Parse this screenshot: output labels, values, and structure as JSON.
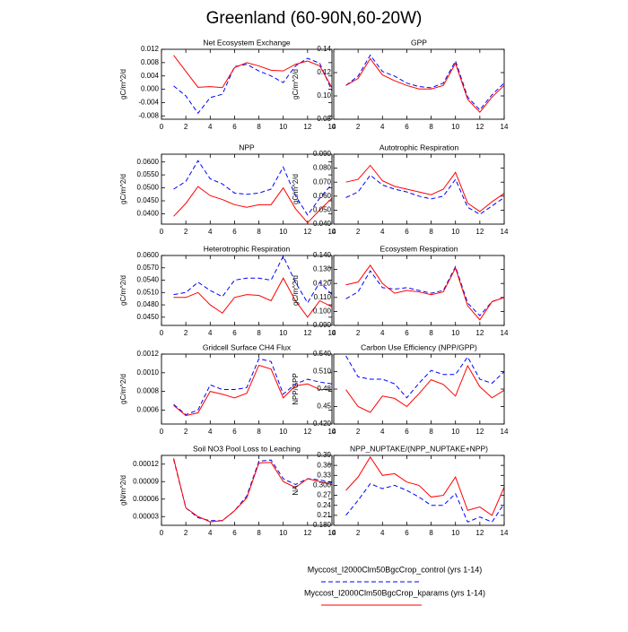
{
  "title": "Greenland (60-90N,60-20W)",
  "legend": [
    {
      "name": "Myccost_I2000Clm50BgcCrop_control (yrs 1-14)",
      "color": "#0000ff",
      "dashed": true
    },
    {
      "name": "Myccost_I2000Clm50BgcCrop_kparams (yrs 1-14)",
      "color": "#ff0000",
      "dashed": false
    }
  ],
  "chart_data": [
    {
      "type": "line",
      "title": "Net Ecosystem Exchange",
      "ylabel": "gC/m^2/d",
      "x": [
        1,
        2,
        3,
        4,
        5,
        6,
        7,
        8,
        9,
        10,
        11,
        12,
        13,
        14
      ],
      "xlim": [
        0,
        14
      ],
      "xticks": [
        0,
        2,
        4,
        6,
        8,
        10,
        12,
        14
      ],
      "ylim": [
        -0.009,
        0.012
      ],
      "yticks": [
        -0.008,
        -0.004,
        {
          "value": 0,
          "label": "0.000"
        },
        0.004,
        0.008,
        0.012
      ],
      "series": [
        {
          "values": [
            0.001,
            -0.002,
            -0.0072,
            -0.0025,
            -0.0015,
            0.0068,
            0.0075,
            0.0055,
            0.004,
            0.002,
            0.007,
            0.0093,
            0.0078,
            -0.0005
          ]
        },
        {
          "values": [
            0.0102,
            0.0054,
            0.0006,
            0.0008,
            0.0005,
            0.0065,
            0.008,
            0.007,
            0.0057,
            0.0055,
            0.0075,
            0.0085,
            0.007,
            0.0005
          ]
        }
      ]
    },
    {
      "type": "line",
      "title": "GPP",
      "ylabel": "gC/m^2/d",
      "x": [
        1,
        2,
        3,
        4,
        5,
        6,
        7,
        8,
        9,
        10,
        11,
        12,
        13,
        14
      ],
      "xlim": [
        0,
        14
      ],
      "xticks": [
        0,
        2,
        4,
        6,
        8,
        10,
        12,
        14
      ],
      "ylim": [
        0.08,
        0.14
      ],
      "yticks": [
        0.08,
        {
          "value": 0.1,
          "label": "0.10"
        },
        0.12,
        0.14
      ],
      "series": [
        {
          "values": [
            0.109,
            0.117,
            0.135,
            0.121,
            0.117,
            0.111,
            0.108,
            0.107,
            0.111,
            0.13,
            0.099,
            0.088,
            0.101,
            0.111
          ]
        },
        {
          "values": [
            0.109,
            0.115,
            0.132,
            0.118,
            0.113,
            0.109,
            0.106,
            0.106,
            0.109,
            0.128,
            0.097,
            0.086,
            0.099,
            0.109
          ]
        }
      ]
    },
    {
      "type": "line",
      "title": "NPP",
      "ylabel": "gC/m^2/d",
      "x": [
        1,
        2,
        3,
        4,
        5,
        6,
        7,
        8,
        9,
        10,
        11,
        12,
        13,
        14
      ],
      "xlim": [
        0,
        14
      ],
      "xticks": [
        0,
        2,
        4,
        6,
        8,
        10,
        12,
        14
      ],
      "ylim": [
        0.036,
        0.063
      ],
      "yticks": [
        {
          "value": 0.04,
          "label": "0.0400"
        },
        {
          "value": 0.045,
          "label": "0.0450"
        },
        {
          "value": 0.05,
          "label": "0.0500"
        },
        {
          "value": 0.055,
          "label": "0.0550"
        },
        {
          "value": 0.06,
          "label": "0.0600"
        }
      ],
      "series": [
        {
          "values": [
            0.0495,
            0.0525,
            0.0605,
            0.0535,
            0.0515,
            0.048,
            0.0475,
            0.048,
            0.0495,
            0.058,
            0.047,
            0.0395,
            0.046,
            0.0515
          ]
        },
        {
          "values": [
            0.039,
            0.044,
            0.0505,
            0.047,
            0.0455,
            0.0435,
            0.0425,
            0.0435,
            0.0435,
            0.05,
            0.042,
            0.0365,
            0.0415,
            0.046
          ]
        }
      ]
    },
    {
      "type": "line",
      "title": "Autotrophic Respiration",
      "ylabel": "gC/m^2/d",
      "x": [
        1,
        2,
        3,
        4,
        5,
        6,
        7,
        8,
        9,
        10,
        11,
        12,
        13,
        14
      ],
      "xlim": [
        0,
        14
      ],
      "xticks": [
        0,
        2,
        4,
        6,
        8,
        10,
        12,
        14
      ],
      "ylim": [
        0.04,
        0.09
      ],
      "yticks": [
        {
          "value": 0.04,
          "label": "0.040"
        },
        {
          "value": 0.05,
          "label": "0.050"
        },
        {
          "value": 0.06,
          "label": "0.060"
        },
        {
          "value": 0.07,
          "label": "0.070"
        },
        {
          "value": 0.08,
          "label": "0.080"
        },
        {
          "value": 0.09,
          "label": "0.090"
        }
      ],
      "series": [
        {
          "values": [
            0.059,
            0.063,
            0.075,
            0.068,
            0.065,
            0.063,
            0.06,
            0.058,
            0.06,
            0.072,
            0.052,
            0.047,
            0.053,
            0.059
          ]
        },
        {
          "values": [
            0.07,
            0.072,
            0.082,
            0.071,
            0.067,
            0.065,
            0.063,
            0.061,
            0.065,
            0.077,
            0.055,
            0.049,
            0.056,
            0.062
          ]
        }
      ]
    },
    {
      "type": "line",
      "title": "Heterotrophic Respiration",
      "ylabel": "gC/m^2/d",
      "x": [
        1,
        2,
        3,
        4,
        5,
        6,
        7,
        8,
        9,
        10,
        11,
        12,
        13,
        14
      ],
      "xlim": [
        0,
        14
      ],
      "xticks": [
        0,
        2,
        4,
        6,
        8,
        10,
        12,
        14
      ],
      "ylim": [
        0.043,
        0.06
      ],
      "yticks": [
        {
          "value": 0.045,
          "label": "0.0450"
        },
        {
          "value": 0.048,
          "label": "0.0480"
        },
        {
          "value": 0.051,
          "label": "0.0510"
        },
        {
          "value": 0.054,
          "label": "0.0540"
        },
        {
          "value": 0.057,
          "label": "0.0570"
        },
        {
          "value": 0.06,
          "label": "0.0600"
        }
      ],
      "series": [
        {
          "values": [
            0.0505,
            0.051,
            0.0535,
            0.0515,
            0.05,
            0.054,
            0.0545,
            0.0545,
            0.054,
            0.0598,
            0.0535,
            0.0485,
            0.0535,
            0.0505
          ]
        },
        {
          "values": [
            0.0498,
            0.0498,
            0.051,
            0.048,
            0.046,
            0.0498,
            0.0505,
            0.0503,
            0.049,
            0.0545,
            0.049,
            0.045,
            0.049,
            0.0475
          ]
        }
      ]
    },
    {
      "type": "line",
      "title": "Ecosystem Respiration",
      "ylabel": "gC/m^2/d",
      "x": [
        1,
        2,
        3,
        4,
        5,
        6,
        7,
        8,
        9,
        10,
        11,
        12,
        13,
        14
      ],
      "xlim": [
        0,
        14
      ],
      "xticks": [
        0,
        2,
        4,
        6,
        8,
        10,
        12,
        14
      ],
      "ylim": [
        0.09,
        0.14
      ],
      "yticks": [
        {
          "value": 0.09,
          "label": "0.090"
        },
        {
          "value": 0.1,
          "label": "0.100"
        },
        {
          "value": 0.11,
          "label": "0.110"
        },
        {
          "value": 0.12,
          "label": "0.120"
        },
        {
          "value": 0.13,
          "label": "0.130"
        },
        {
          "value": 0.14,
          "label": "0.140"
        }
      ],
      "series": [
        {
          "values": [
            0.109,
            0.114,
            0.129,
            0.117,
            0.116,
            0.117,
            0.115,
            0.113,
            0.115,
            0.132,
            0.106,
            0.097,
            0.107,
            0.11
          ]
        },
        {
          "values": [
            0.119,
            0.121,
            0.133,
            0.12,
            0.113,
            0.115,
            0.114,
            0.112,
            0.114,
            0.131,
            0.104,
            0.094,
            0.107,
            0.11
          ]
        }
      ]
    },
    {
      "type": "line",
      "title": "Gridcell Surface CH4 Flux",
      "ylabel": "gC/m^2/d",
      "x": [
        1,
        2,
        3,
        4,
        5,
        6,
        7,
        8,
        9,
        10,
        11,
        12,
        13,
        14
      ],
      "xlim": [
        0,
        14
      ],
      "xticks": [
        0,
        2,
        4,
        6,
        8,
        10,
        12,
        14
      ],
      "ylim": [
        0.00045,
        0.0012
      ],
      "yticks": [
        {
          "value": 0.0006,
          "label": "0.0006"
        },
        {
          "value": 0.0008,
          "label": "0.0008"
        },
        {
          "value": 0.001,
          "label": "0.0010"
        },
        {
          "value": 0.0012,
          "label": "0.0012"
        }
      ],
      "series": [
        {
          "values": [
            0.00066,
            0.00055,
            0.0006,
            0.00087,
            0.00082,
            0.00082,
            0.00084,
            0.00115,
            0.00112,
            0.00077,
            0.00088,
            0.00093,
            0.0009,
            0.00088
          ]
        },
        {
          "values": [
            0.00065,
            0.00054,
            0.00057,
            0.0008,
            0.00077,
            0.00073,
            0.00078,
            0.00108,
            0.00104,
            0.00073,
            0.00086,
            0.00088,
            0.00082,
            0.00082
          ]
        }
      ]
    },
    {
      "type": "line",
      "title": "Carbon Use Efficiency (NPP/GPP)",
      "ylabel": "NPP/GPP",
      "x": [
        1,
        2,
        3,
        4,
        5,
        6,
        7,
        8,
        9,
        10,
        11,
        12,
        13,
        14
      ],
      "xlim": [
        0,
        14
      ],
      "xticks": [
        0,
        2,
        4,
        6,
        8,
        10,
        12,
        14
      ],
      "ylim": [
        0.42,
        0.54
      ],
      "yticks": [
        {
          "value": 0.42,
          "label": "0.420"
        },
        0.45,
        0.48,
        {
          "value": 0.51,
          "label": "0.510"
        },
        {
          "value": 0.54,
          "label": "0.540"
        }
      ],
      "series": [
        {
          "values": [
            0.537,
            0.501,
            0.497,
            0.497,
            0.489,
            0.465,
            0.49,
            0.512,
            0.505,
            0.505,
            0.535,
            0.497,
            0.49,
            0.51
          ]
        },
        {
          "values": [
            0.479,
            0.45,
            0.44,
            0.468,
            0.464,
            0.45,
            0.472,
            0.496,
            0.488,
            0.468,
            0.52,
            0.484,
            0.465,
            0.478
          ]
        }
      ]
    },
    {
      "type": "line",
      "title": "Soil NO3 Pool Loss to Leaching",
      "ylabel": "gN/m^2/d",
      "x": [
        1,
        2,
        3,
        4,
        5,
        6,
        7,
        8,
        9,
        10,
        11,
        12,
        13,
        14
      ],
      "xlim": [
        0,
        14
      ],
      "xticks": [
        0,
        2,
        4,
        6,
        8,
        10,
        12,
        14
      ],
      "ylim": [
        1.5e-05,
        0.000135
      ],
      "yticks": [
        3e-05,
        6e-05,
        9e-05,
        0.00012
      ],
      "series": [
        {
          "values": [
            0.000128,
            4.5e-05,
            2.8e-05,
            2.3e-05,
            2.3e-05,
            4e-05,
            6.5e-05,
            0.000125,
            0.000127,
            9.5e-05,
            8.5e-05,
            9.5e-05,
            9.3e-05,
            8.8e-05
          ]
        },
        {
          "values": [
            0.00013,
            4.5e-05,
            3e-05,
            2.1e-05,
            2.3e-05,
            4e-05,
            6.2e-05,
            0.000122,
            0.000123,
            9e-05,
            8e-05,
            9.5e-05,
            9e-05,
            8.5e-05
          ]
        }
      ]
    },
    {
      "type": "line",
      "title": "NPP_NUPTAKE/(NPP_NUPTAKE+NPP)",
      "ylabel": "NA",
      "x": [
        1,
        2,
        3,
        4,
        5,
        6,
        7,
        8,
        9,
        10,
        11,
        12,
        13,
        14
      ],
      "xlim": [
        0,
        14
      ],
      "xticks": [
        0,
        2,
        4,
        6,
        8,
        10,
        12,
        14
      ],
      "ylim": [
        0.18,
        0.39
      ],
      "yticks": [
        {
          "value": 0.18,
          "label": "0.180"
        },
        0.21,
        0.24,
        0.27,
        {
          "value": 0.3,
          "label": "0.300"
        },
        0.33,
        0.36,
        0.39
      ],
      "series": [
        {
          "values": [
            0.21,
            0.255,
            0.305,
            0.29,
            0.3,
            0.285,
            0.265,
            0.24,
            0.24,
            0.275,
            0.19,
            0.205,
            0.19,
            0.245
          ]
        },
        {
          "values": [
            0.285,
            0.325,
            0.385,
            0.33,
            0.335,
            0.31,
            0.3,
            0.265,
            0.27,
            0.325,
            0.225,
            0.235,
            0.21,
            0.295
          ]
        }
      ]
    }
  ]
}
